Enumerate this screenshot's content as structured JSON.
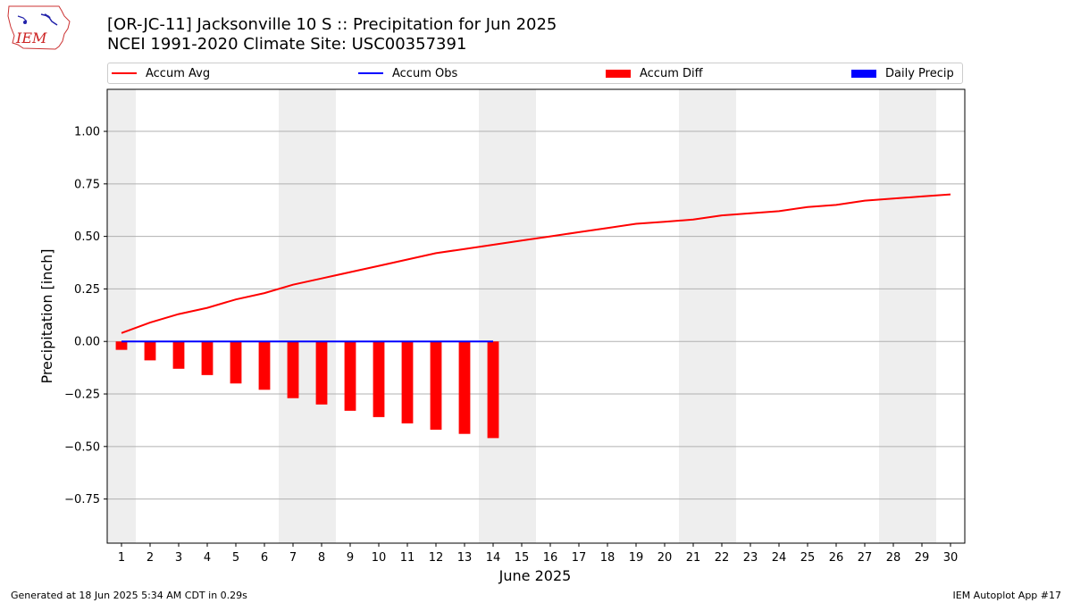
{
  "header": {
    "title_line1": "[OR-JC-11] Jacksonville 10 S :: Precipitation for Jun 2025",
    "title_line2": "NCEI 1991-2020 Climate Site: USC00357391"
  },
  "logo": {
    "text": "IEM"
  },
  "footer": {
    "left": "Generated at 18 Jun 2025 5:34 AM CDT in 0.29s",
    "right": "IEM Autoplot App #17"
  },
  "legend": [
    {
      "label": "Accum Avg",
      "kind": "line",
      "color": "#ff0000"
    },
    {
      "label": "Accum Obs",
      "kind": "line",
      "color": "#0000ff"
    },
    {
      "label": "Accum Diff",
      "kind": "patch",
      "color": "#ff0000"
    },
    {
      "label": "Daily Precip",
      "kind": "patch",
      "color": "#0000ff"
    }
  ],
  "chart_data": {
    "type": "line",
    "xlabel": "June 2025",
    "ylabel": "Precipitation [inch]",
    "xlim": [
      0.5,
      30.5
    ],
    "ylim": [
      -0.96,
      1.2
    ],
    "x_ticks": [
      1,
      2,
      3,
      4,
      5,
      6,
      7,
      8,
      9,
      10,
      11,
      12,
      13,
      14,
      15,
      16,
      17,
      18,
      19,
      20,
      21,
      22,
      23,
      24,
      25,
      26,
      27,
      28,
      29,
      30
    ],
    "y_ticks": [
      -0.75,
      -0.5,
      -0.25,
      0.0,
      0.25,
      0.5,
      0.75,
      1.0
    ],
    "y_tick_labels": [
      "−0.75",
      "−0.50",
      "−0.25",
      "0.00",
      "0.25",
      "0.50",
      "0.75",
      "1.00"
    ],
    "grid": "horizontal",
    "weekend_shading": [
      [
        0.5,
        1.5
      ],
      [
        6.5,
        8.5
      ],
      [
        13.5,
        15.5
      ],
      [
        20.5,
        22.5
      ],
      [
        27.5,
        29.5
      ]
    ],
    "series": [
      {
        "name": "Accum Avg",
        "kind": "line",
        "color": "#ff0000",
        "x": [
          1,
          2,
          3,
          4,
          5,
          6,
          7,
          8,
          9,
          10,
          11,
          12,
          13,
          14,
          15,
          16,
          17,
          18,
          19,
          20,
          21,
          22,
          23,
          24,
          25,
          26,
          27,
          28,
          29,
          30
        ],
        "values": [
          0.04,
          0.09,
          0.13,
          0.16,
          0.2,
          0.23,
          0.27,
          0.3,
          0.33,
          0.36,
          0.39,
          0.42,
          0.44,
          0.46,
          0.48,
          0.5,
          0.52,
          0.54,
          0.56,
          0.57,
          0.58,
          0.6,
          0.61,
          0.62,
          0.64,
          0.65,
          0.67,
          0.68,
          0.69,
          0.7
        ]
      },
      {
        "name": "Accum Obs",
        "kind": "line",
        "color": "#0000ff",
        "x": [
          1,
          2,
          3,
          4,
          5,
          6,
          7,
          8,
          9,
          10,
          11,
          12,
          13,
          14
        ],
        "values": [
          0,
          0,
          0,
          0,
          0,
          0,
          0,
          0,
          0,
          0,
          0,
          0,
          0,
          0
        ]
      },
      {
        "name": "Accum Diff",
        "kind": "bar",
        "color": "#ff0000",
        "x": [
          1,
          2,
          3,
          4,
          5,
          6,
          7,
          8,
          9,
          10,
          11,
          12,
          13,
          14
        ],
        "values": [
          -0.04,
          -0.09,
          -0.13,
          -0.16,
          -0.2,
          -0.23,
          -0.27,
          -0.3,
          -0.33,
          -0.36,
          -0.39,
          -0.42,
          -0.44,
          -0.46
        ]
      },
      {
        "name": "Daily Precip",
        "kind": "bar",
        "color": "#0000ff",
        "x": [
          1,
          2,
          3,
          4,
          5,
          6,
          7,
          8,
          9,
          10,
          11,
          12,
          13,
          14
        ],
        "values": [
          0,
          0,
          0,
          0,
          0,
          0,
          0,
          0,
          0,
          0,
          0,
          0,
          0,
          0
        ]
      }
    ]
  }
}
